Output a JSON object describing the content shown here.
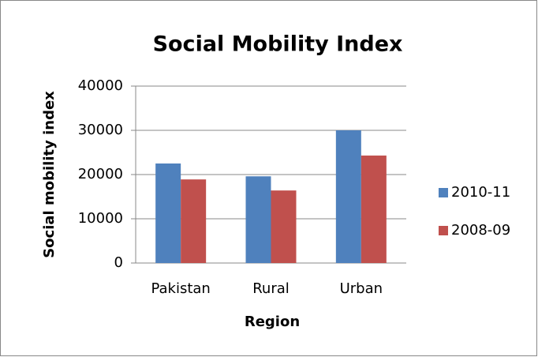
{
  "chart_data": {
    "type": "bar",
    "title": "Social Mobility Index",
    "x_label": "Region",
    "y_label": "Social mobility index",
    "categories": [
      "Pakistan",
      "Rural",
      "Urban"
    ],
    "series": [
      {
        "name": "2010-11",
        "color": "#4f81bd",
        "values": [
          22500,
          19600,
          30000
        ]
      },
      {
        "name": "2008-09",
        "color": "#c0504d",
        "values": [
          18900,
          16400,
          24300
        ]
      }
    ],
    "ylim": [
      0,
      40000
    ],
    "yticks": [
      0,
      10000,
      20000,
      30000,
      40000
    ],
    "grid": true,
    "legend": "right"
  }
}
